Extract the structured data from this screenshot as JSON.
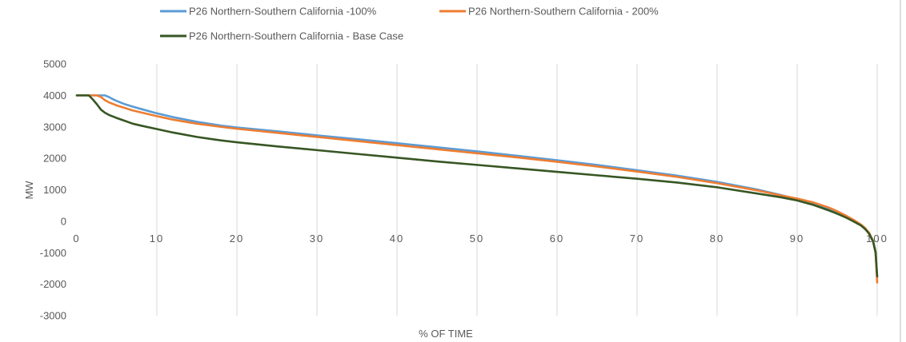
{
  "chart_data": {
    "type": "line",
    "xlabel": "% OF TIME",
    "ylabel": "MW",
    "xlim": [
      0,
      100
    ],
    "ylim": [
      -3000,
      5000
    ],
    "xticks": [
      0,
      10,
      20,
      30,
      40,
      50,
      60,
      70,
      80,
      90,
      100
    ],
    "yticks": [
      5000,
      4000,
      3000,
      2000,
      1000,
      0,
      -1000,
      -2000,
      -3000
    ],
    "grid": "vertical",
    "legend_position": "top",
    "series": [
      {
        "name": "P26 Northern-Southern California -100%",
        "color": "#5b9bd5",
        "x": [
          0,
          1,
          2,
          3,
          3.5,
          4,
          4.5,
          5,
          6,
          7,
          8,
          10,
          12,
          15,
          18,
          20,
          25,
          30,
          35,
          40,
          45,
          50,
          55,
          60,
          65,
          70,
          75,
          80,
          85,
          88,
          90,
          92,
          94,
          95,
          96,
          97,
          98,
          98.5,
          99,
          99.5,
          99.8,
          100
        ],
        "y": [
          4000,
          4000,
          4000,
          4000,
          4000,
          3950,
          3880,
          3820,
          3720,
          3640,
          3570,
          3430,
          3310,
          3160,
          3040,
          2980,
          2860,
          2730,
          2610,
          2480,
          2350,
          2220,
          2080,
          1940,
          1790,
          1620,
          1450,
          1250,
          1010,
          830,
          700,
          560,
          380,
          280,
          160,
          30,
          -120,
          -230,
          -380,
          -620,
          -950,
          -1800
        ]
      },
      {
        "name": "P26 Northern-Southern California - 200%",
        "color": "#ed7d31",
        "x": [
          0,
          1,
          2,
          2.5,
          3,
          3.5,
          4,
          5,
          6,
          7,
          8,
          10,
          12,
          15,
          18,
          20,
          25,
          30,
          35,
          40,
          45,
          50,
          55,
          60,
          65,
          70,
          75,
          80,
          85,
          88,
          90,
          92,
          94,
          95,
          96,
          97,
          98,
          98.5,
          99,
          99.5,
          99.8,
          100
        ],
        "y": [
          4000,
          4000,
          4000,
          4000,
          3950,
          3850,
          3780,
          3680,
          3600,
          3520,
          3460,
          3340,
          3230,
          3100,
          3000,
          2940,
          2810,
          2680,
          2550,
          2420,
          2290,
          2160,
          2030,
          1890,
          1740,
          1580,
          1410,
          1210,
          980,
          820,
          720,
          600,
          430,
          320,
          190,
          50,
          -110,
          -220,
          -370,
          -640,
          -1000,
          -1950
        ]
      },
      {
        "name": "P26 Northern-Southern California - Base Case",
        "color": "#375623",
        "x": [
          0,
          1,
          1.5,
          2,
          2.5,
          3,
          3.5,
          4,
          5,
          6,
          7,
          8,
          10,
          12,
          15,
          18,
          20,
          25,
          30,
          35,
          40,
          45,
          50,
          55,
          60,
          65,
          70,
          75,
          80,
          85,
          88,
          90,
          92,
          94,
          95,
          96,
          97,
          98,
          98.5,
          99,
          99.5,
          99.8,
          100
        ],
        "y": [
          4000,
          4000,
          4000,
          3870,
          3720,
          3550,
          3450,
          3380,
          3280,
          3190,
          3100,
          3040,
          2930,
          2820,
          2680,
          2570,
          2510,
          2380,
          2260,
          2140,
          2020,
          1900,
          1790,
          1680,
          1570,
          1460,
          1350,
          1230,
          1080,
          880,
          760,
          660,
          520,
          340,
          240,
          130,
          0,
          -140,
          -250,
          -400,
          -660,
          -1000,
          -1750
        ]
      }
    ]
  }
}
